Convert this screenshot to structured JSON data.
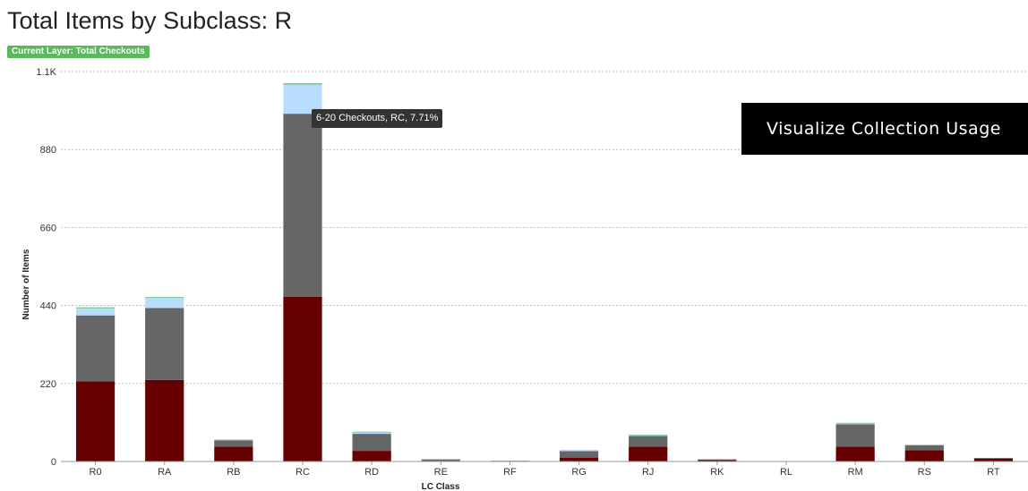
{
  "header": {
    "title": "Total Items by Subclass: R",
    "layer_badge": "Current Layer: Total Checkouts"
  },
  "banner": {
    "text": "Visualize Collection Usage"
  },
  "tooltip": {
    "text": "6-20 Checkouts, RC, 7.71%"
  },
  "colors": {
    "bottom_segment": "#660000",
    "middle_segment": "#666666",
    "upper_segment": "#b8dcfc",
    "top_segment": "#6fc786",
    "badge": "#5cb85c"
  },
  "chart_data": {
    "type": "bar",
    "stacked": true,
    "title": "",
    "xlabel": "LC Class",
    "ylabel": "Number of Items",
    "ylim": [
      0,
      1100
    ],
    "yticks": [
      0,
      220,
      440,
      660,
      880,
      1100
    ],
    "ytick_labels": [
      "0",
      "220",
      "440",
      "660",
      "880",
      "1.1K"
    ],
    "grid": true,
    "categories": [
      "R0",
      "RA",
      "RB",
      "RC",
      "RD",
      "RE",
      "RF",
      "RG",
      "RJ",
      "RK",
      "RL",
      "RM",
      "RS",
      "RT"
    ],
    "series": [
      {
        "color": "#660000",
        "values": [
          226,
          230,
          42,
          465,
          30,
          0,
          1,
          11,
          42,
          4,
          0,
          42,
          32,
          8
        ]
      },
      {
        "color": "#666666",
        "values": [
          186,
          203,
          18,
          516,
          48,
          6,
          1,
          18,
          30,
          2,
          1,
          63,
          14,
          2
        ]
      },
      {
        "color": "#b8dcfc",
        "values": [
          20,
          30,
          3,
          82,
          5,
          0,
          0,
          4,
          3,
          0,
          0,
          3,
          2,
          0
        ]
      },
      {
        "color": "#6fc786",
        "values": [
          3,
          1,
          0,
          4,
          1,
          0,
          0,
          0,
          1,
          0,
          0,
          1,
          0,
          0
        ]
      }
    ]
  }
}
